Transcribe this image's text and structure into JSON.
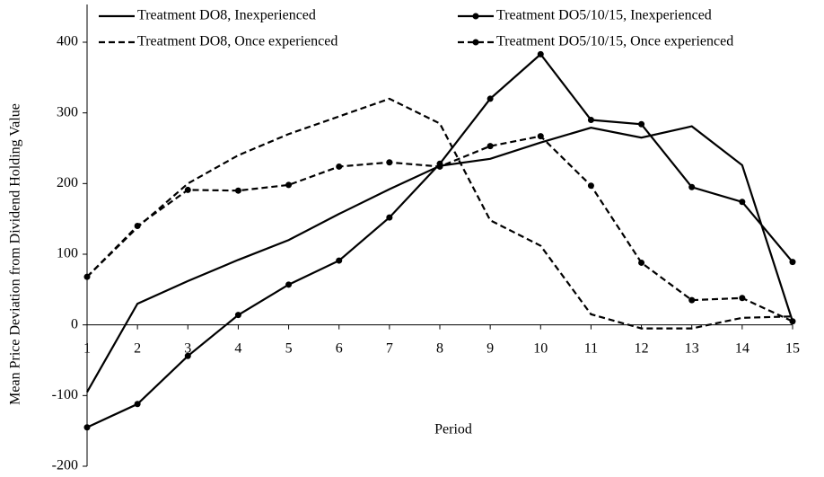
{
  "chart_data": {
    "type": "line",
    "x_label": "Period",
    "y_label": "Mean Price Deviation from Dividend Holding Value",
    "x": [
      1,
      2,
      3,
      4,
      5,
      6,
      7,
      8,
      9,
      10,
      11,
      12,
      13,
      14,
      15
    ],
    "xlim": [
      1,
      15
    ],
    "xticks": [
      1,
      2,
      3,
      4,
      5,
      6,
      7,
      8,
      9,
      10,
      11,
      12,
      13,
      14,
      15
    ],
    "ylim": [
      -200,
      400
    ],
    "yticks": [
      -200,
      -100,
      0,
      100,
      200,
      300,
      400
    ],
    "grid": false,
    "legend_position": "top",
    "series": [
      {
        "name": "Treatment DO8, Inexperienced",
        "color": "#000000",
        "line_style": "solid",
        "marker": false,
        "values": [
          -95,
          30,
          62,
          92,
          120,
          157,
          192,
          225,
          235,
          258,
          279,
          265,
          281,
          226,
          5
        ]
      },
      {
        "name": "Treatment DO5/10/15, Inexperienced",
        "color": "#000000",
        "line_style": "solid",
        "marker": true,
        "values": [
          -145,
          -112,
          -44,
          14,
          57,
          91,
          152,
          228,
          320,
          383,
          290,
          284,
          195,
          174,
          89
        ]
      },
      {
        "name": "Treatment DO8, Once experienced",
        "color": "#000000",
        "line_style": "dashed",
        "marker": false,
        "values": [
          68,
          138,
          200,
          240,
          270,
          295,
          320,
          285,
          148,
          112,
          15,
          -5,
          -5,
          10,
          12
        ]
      },
      {
        "name": "Treatment DO5/10/15, Once experienced",
        "color": "#000000",
        "line_style": "dashed",
        "marker": true,
        "values": [
          68,
          140,
          191,
          190,
          198,
          224,
          230,
          224,
          253,
          267,
          197,
          88,
          35,
          38,
          5
        ]
      }
    ]
  }
}
